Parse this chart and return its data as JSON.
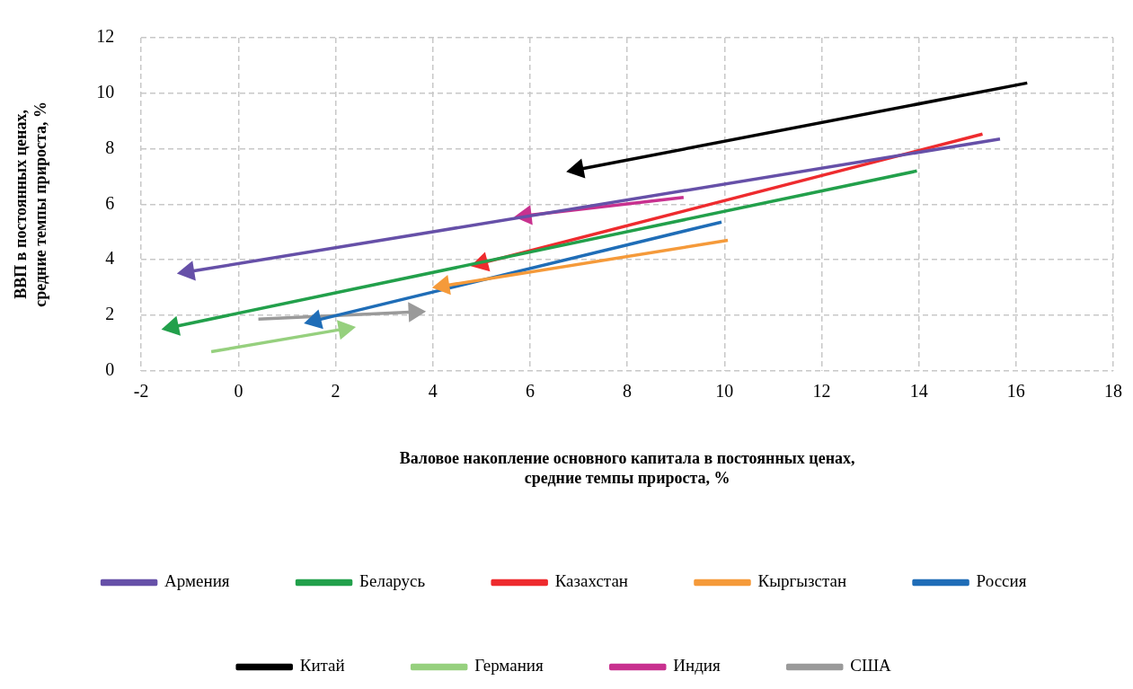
{
  "chart_data": {
    "type": "line",
    "xlabel": "Валовое накопление основного капитала в постоянных ценах,\nсредние темпы прироста, %",
    "ylabel": "ВВП в постоянных ценах,\nсредние темпы прироста, %",
    "xlim": [
      -2,
      18
    ],
    "xticks": [
      -2,
      0,
      2,
      4,
      6,
      8,
      10,
      12,
      14,
      16,
      18
    ],
    "ylim": [
      0,
      12
    ],
    "yticks": [
      0,
      2,
      4,
      6,
      8,
      10,
      12
    ],
    "grid": true,
    "legend": "bottom",
    "marker": "triangle",
    "line_style": "solid",
    "series": [
      {
        "name": "Армения",
        "color": "#6650a8",
        "x": [
          15.67,
          -1.03
        ],
        "values": [
          8.35,
          3.57
        ]
      },
      {
        "name": "Беларусь",
        "color": "#22a04b",
        "x": [
          13.96,
          -1.35
        ],
        "values": [
          7.2,
          1.58
        ]
      },
      {
        "name": "Казахстан",
        "color": "#ee2b2e",
        "x": [
          15.31,
          5.01
        ],
        "values": [
          8.53,
          3.88
        ]
      },
      {
        "name": "Кыргызстан",
        "color": "#f59a3a",
        "x": [
          10.07,
          4.22
        ],
        "values": [
          4.7,
          3.06
        ]
      },
      {
        "name": "Россия",
        "color": "#1f6db7",
        "x": [
          9.94,
          1.58
        ],
        "values": [
          5.36,
          1.81
        ]
      },
      {
        "name": "Китай",
        "color": "#000000",
        "x": [
          16.23,
          6.98
        ],
        "values": [
          10.37,
          7.25
        ]
      },
      {
        "name": "Германия",
        "color": "#96d07e",
        "x": [
          -0.56,
          2.18
        ],
        "values": [
          0.69,
          1.51
        ]
      },
      {
        "name": "Индия",
        "color": "#c8318f",
        "x": [
          9.16,
          5.91
        ],
        "values": [
          6.25,
          5.59
        ]
      },
      {
        "name": "США",
        "color": "#9a9a9a",
        "x": [
          0.41,
          3.62
        ],
        "values": [
          1.86,
          2.12
        ]
      }
    ]
  }
}
